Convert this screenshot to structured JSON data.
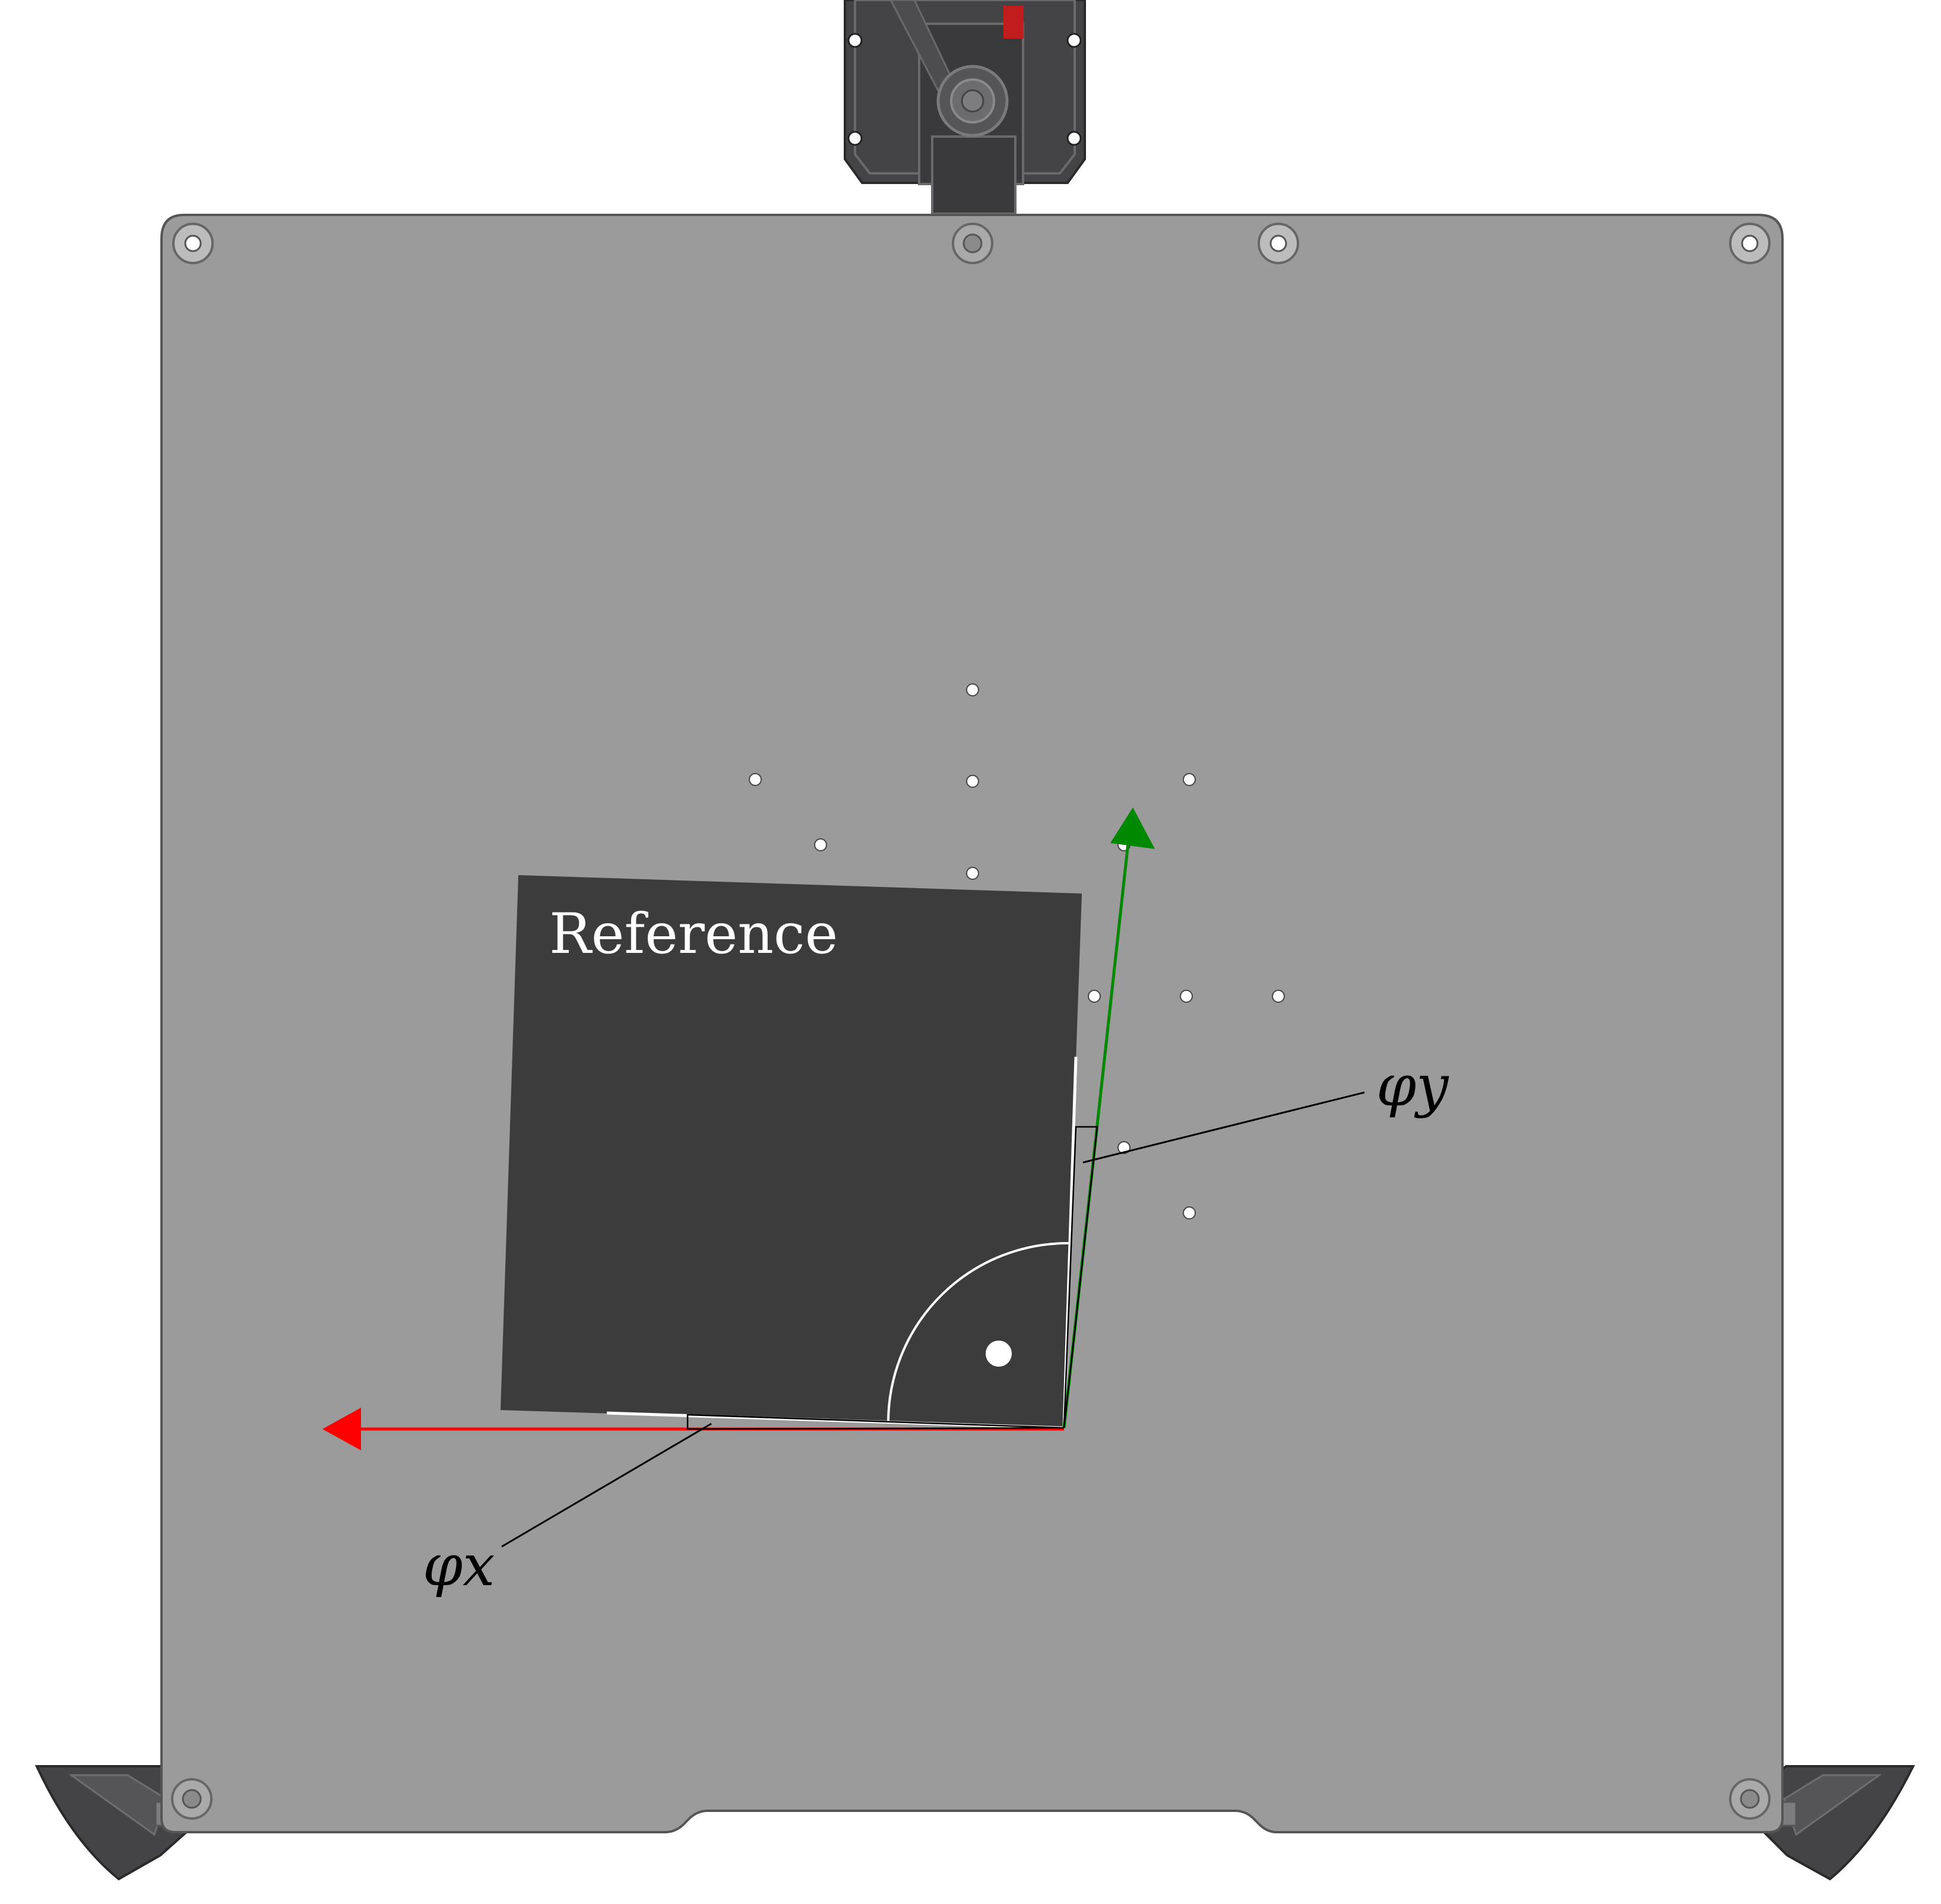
{
  "diagram": {
    "reference_label": "Reference",
    "phi_x_label": "φx",
    "phi_y_label": "φy",
    "colors": {
      "page_background": "#ffffff",
      "bed_fill": "#9b9b9b",
      "bed_outline": "#555555",
      "reference_plate": "#3c3c3c",
      "x_axis_arrow": "#ff0000",
      "y_axis_arrow": "#008800",
      "annotation_line": "#000000",
      "markers": "#ffffff",
      "printer_hardware": "#444446"
    },
    "icons": {
      "bed": "print-bed",
      "carriage": "print-head-carriage",
      "feet": "bed-support-brackets",
      "fiducials": "probe-point-markers"
    }
  }
}
